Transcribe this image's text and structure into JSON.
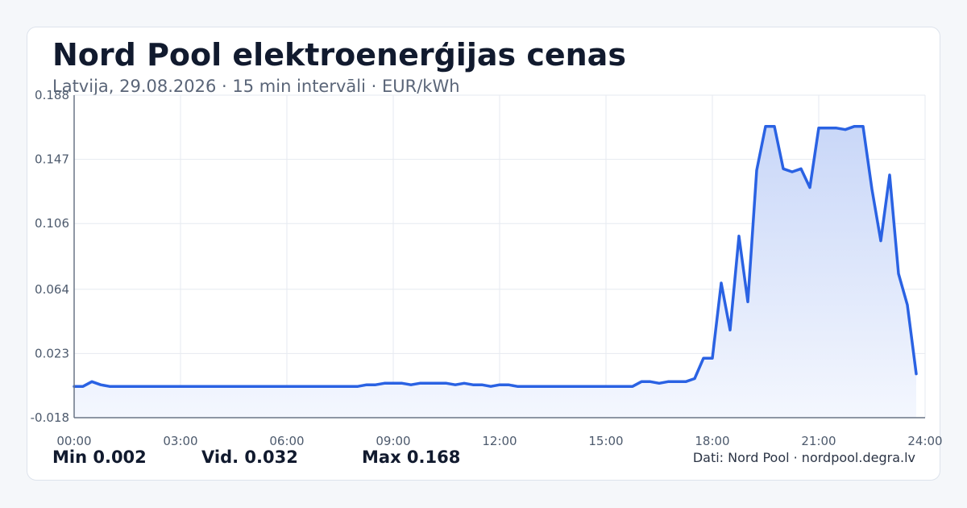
{
  "header": {
    "title": "Nord Pool elektroenerģijas cenas",
    "subtitle": "Latvija, 29.08.2026 · 15 min intervāli · EUR/kWh"
  },
  "stats": {
    "min": "Min 0.002",
    "avg": "Vid. 0.032",
    "max": "Max 0.168"
  },
  "footer": {
    "source": "Dati: Nord Pool · nordpool.degra.lv"
  },
  "colors": {
    "line": "#2a62e3",
    "fill_top": "#c9d7f8",
    "fill_bottom": "#f4f7fe",
    "grid": "#e6eaf0",
    "axis": "#6a7585",
    "tick_text": "#4d5a6d"
  },
  "chart_data": {
    "type": "area",
    "title": "Nord Pool elektroenerģijas cenas",
    "xlabel": "",
    "ylabel": "",
    "xlim": [
      0,
      24
    ],
    "ylim": [
      -0.018,
      0.188
    ],
    "y_ticks": [
      "0.188",
      "0.147",
      "0.106",
      "0.064",
      "0.023",
      "-0.018"
    ],
    "x_ticks": [
      "00:00",
      "03:00",
      "06:00",
      "09:00",
      "12:00",
      "15:00",
      "18:00",
      "21:00",
      "24:00"
    ],
    "grid": true,
    "legend": "none",
    "x_unit": "hours",
    "series": [
      {
        "x": [
          0,
          0.25,
          0.5,
          0.75,
          1.0,
          8.0,
          8.25,
          8.5,
          8.75,
          9.25,
          9.5,
          9.75,
          10.5,
          10.75,
          11.0,
          11.25,
          11.5,
          11.75,
          12.0,
          12.25,
          12.5,
          15.75,
          16.0,
          16.25,
          16.5,
          16.75,
          17.25,
          17.5,
          17.75,
          18.0,
          18.25,
          18.5,
          18.75,
          19.0,
          19.25,
          19.5,
          19.75,
          20.0,
          20.25,
          20.5,
          20.75,
          21.0,
          21.25,
          21.5,
          21.75,
          22.0,
          22.25,
          22.5,
          22.75,
          23.0,
          23.25,
          23.5,
          23.75
        ],
        "y": [
          0.002,
          0.002,
          0.005,
          0.003,
          0.002,
          0.002,
          0.003,
          0.003,
          0.004,
          0.004,
          0.003,
          0.004,
          0.004,
          0.003,
          0.004,
          0.003,
          0.003,
          0.002,
          0.003,
          0.003,
          0.002,
          0.002,
          0.005,
          0.005,
          0.004,
          0.005,
          0.005,
          0.007,
          0.02,
          0.02,
          0.068,
          0.038,
          0.098,
          0.056,
          0.14,
          0.168,
          0.168,
          0.141,
          0.139,
          0.141,
          0.129,
          0.167,
          0.167,
          0.167,
          0.166,
          0.168,
          0.168,
          0.128,
          0.095,
          0.137,
          0.074,
          0.054,
          0.01
        ]
      }
    ]
  }
}
